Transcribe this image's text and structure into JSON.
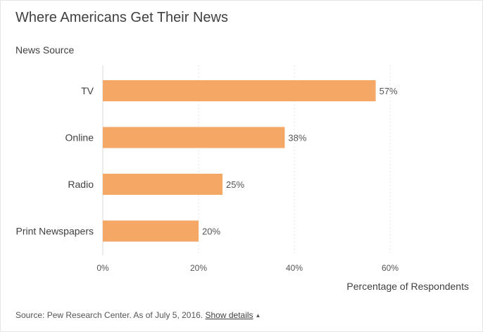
{
  "header": {
    "title": "Where Americans Get Their News"
  },
  "chart_data": {
    "type": "bar",
    "orientation": "horizontal",
    "title": "Where Americans Get Their News",
    "ylabel": "News Source",
    "xlabel": "Percentage of Respondents",
    "categories": [
      "TV",
      "Online",
      "Radio",
      "Print Newspapers"
    ],
    "values": [
      57,
      38,
      25,
      20
    ],
    "value_labels": [
      "57%",
      "38%",
      "25%",
      "20%"
    ],
    "xlim": [
      0,
      60
    ],
    "xticks": [
      0,
      20,
      40,
      60
    ],
    "xtick_labels": [
      "0%",
      "20%",
      "40%",
      "60%"
    ],
    "bar_color": "#f5a766",
    "grid": "vertical dashed",
    "legend": "none"
  },
  "footer": {
    "source_text": "Source: Pew Research Center. As of July 5, 2016.",
    "details_link": "Show details"
  }
}
